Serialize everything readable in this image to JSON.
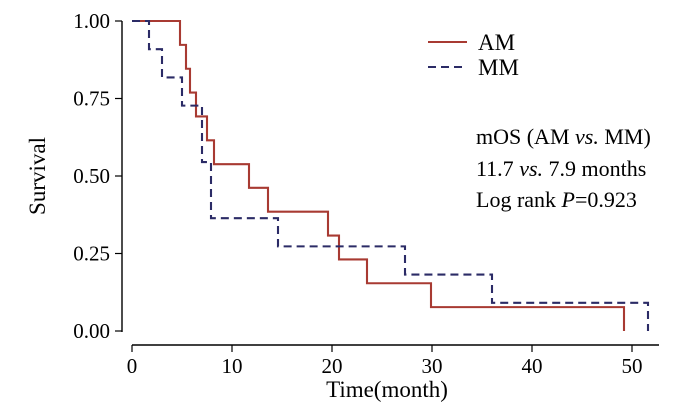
{
  "chart_data": {
    "type": "line",
    "subtype": "kaplan-meier-step",
    "title": "",
    "xlabel": "Time(month)",
    "ylabel": "Survival",
    "xlim": [
      0,
      52
    ],
    "ylim": [
      0,
      1
    ],
    "x_ticks": [
      0,
      10,
      20,
      30,
      40,
      50
    ],
    "y_ticks": [
      0.0,
      0.25,
      0.5,
      0.75,
      1.0
    ],
    "x_tick_labels": [
      "0",
      "10",
      "20",
      "30",
      "40",
      "50"
    ],
    "y_tick_labels": [
      "0.00",
      "0.25",
      "0.50",
      "0.75",
      "1.00"
    ],
    "grid": false,
    "legend_position": "top-right",
    "series": [
      {
        "name": "AM",
        "color": "#a83a32",
        "dash": "solid",
        "times": [
          0,
          4.8,
          5.4,
          5.8,
          6.4,
          7.5,
          8.2,
          11.7,
          13.6,
          19.6,
          20.7,
          23.5,
          29.9,
          49.2
        ],
        "survival": [
          1.0,
          0.923,
          0.846,
          0.769,
          0.692,
          0.615,
          0.538,
          0.462,
          0.385,
          0.308,
          0.231,
          0.154,
          0.077,
          0.0
        ],
        "end_time": 49.2
      },
      {
        "name": "MM",
        "color": "#2b2b66",
        "dash": "dashed",
        "times": [
          0,
          1.7,
          3.0,
          5.0,
          6.2,
          7.0,
          7.9,
          14.6,
          20.2,
          27.3,
          36.0,
          51.6
        ],
        "survival": [
          1.0,
          0.909,
          0.818,
          0.727,
          0.727,
          0.545,
          0.364,
          0.273,
          0.273,
          0.182,
          0.091,
          0.0
        ],
        "end_time": 51.6
      }
    ],
    "annotation": {
      "line1": "mOS (AM vs. MM)",
      "line2": "11.7 vs. 7.9 months",
      "line3": "Log rank P=0.923",
      "line1_parts": [
        "mOS (AM ",
        "vs.",
        " MM)"
      ],
      "line2_parts": [
        "11.7 ",
        "vs.",
        " 7.9 months"
      ],
      "line3_parts": [
        "Log rank ",
        "P",
        "=0.923"
      ]
    }
  }
}
